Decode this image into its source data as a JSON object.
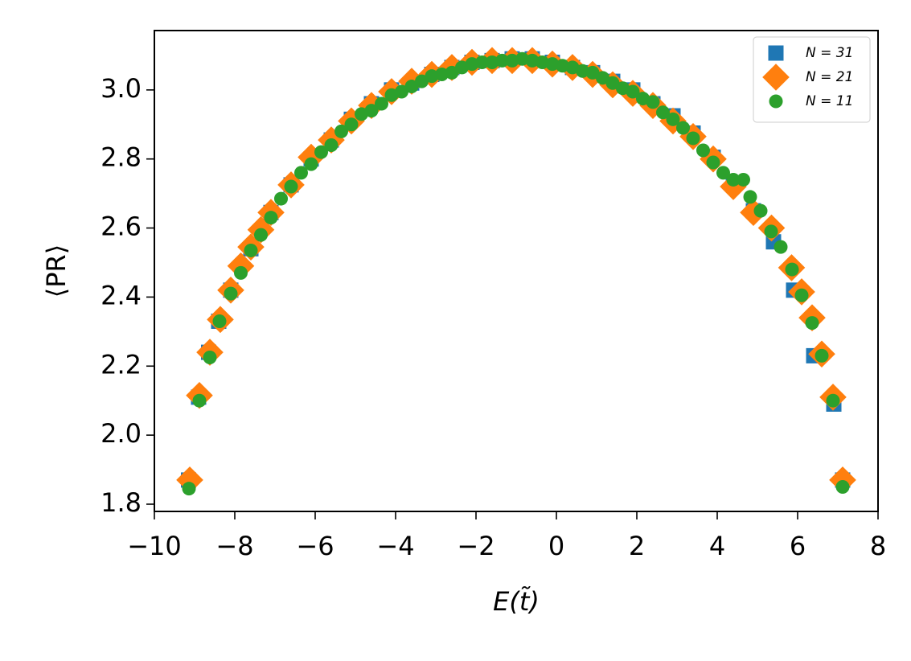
{
  "chart_data": {
    "type": "scatter",
    "x_label": "E(t̃)",
    "y_label": "⟨PR⟩",
    "xlim": [
      -10,
      8
    ],
    "ylim": [
      1.779,
      3.172
    ],
    "xticks": [
      {
        "value": -10,
        "label": "−10"
      },
      {
        "value": -8,
        "label": "−8"
      },
      {
        "value": -6,
        "label": "−6"
      },
      {
        "value": -4,
        "label": "−4"
      },
      {
        "value": -2,
        "label": "−2"
      },
      0,
      2,
      4,
      6,
      8
    ],
    "yticks": [
      1.8,
      {
        "value": 2,
        "label": "2.0"
      },
      2.2,
      2.4,
      2.6,
      2.8,
      {
        "value": 3,
        "label": "3.0"
      }
    ],
    "legend": "upper right",
    "series": [
      {
        "name": "N = 31",
        "color": "#1f77b4",
        "marker": "square",
        "x": [
          -9.15,
          -8.9,
          -8.65,
          -8.4,
          -8.1,
          -7.6,
          -7.1,
          -6.6,
          -6.1,
          -5.6,
          -5.1,
          -4.6,
          -4.1,
          -3.6,
          -3.1,
          -2.6,
          -2.1,
          -1.6,
          -1.1,
          -0.6,
          -0.1,
          0.4,
          0.9,
          1.4,
          1.9,
          2.4,
          2.9,
          3.4,
          3.9,
          4.4,
          4.9,
          5.4,
          5.9,
          6.4,
          6.9,
          7.12
        ],
        "values": [
          1.87,
          2.11,
          2.24,
          2.33,
          2.42,
          2.54,
          2.645,
          2.725,
          2.8,
          2.855,
          2.915,
          2.96,
          3.0,
          3.02,
          3.045,
          3.065,
          3.08,
          3.085,
          3.09,
          3.09,
          3.08,
          3.065,
          3.05,
          3.025,
          3.0,
          2.96,
          2.925,
          2.875,
          2.805,
          2.73,
          2.65,
          2.56,
          2.42,
          2.23,
          2.09,
          1.87
        ]
      },
      {
        "name": "N = 21",
        "color": "#ff7f0e",
        "marker": "diamond",
        "x": [
          -9.12,
          -8.88,
          -8.62,
          -8.36,
          -8.1,
          -7.85,
          -7.6,
          -7.35,
          -7.1,
          -6.6,
          -6.1,
          -5.6,
          -5.1,
          -4.6,
          -4.1,
          -3.6,
          -3.1,
          -2.6,
          -2.1,
          -1.6,
          -1.1,
          -0.6,
          -0.1,
          0.4,
          0.9,
          1.4,
          1.9,
          2.4,
          2.9,
          3.4,
          3.9,
          4.4,
          4.9,
          5.35,
          5.85,
          6.1,
          6.36,
          6.6,
          6.88,
          7.12
        ],
        "values": [
          1.87,
          2.115,
          2.24,
          2.335,
          2.42,
          2.49,
          2.545,
          2.595,
          2.645,
          2.725,
          2.805,
          2.855,
          2.91,
          2.955,
          2.995,
          3.025,
          3.045,
          3.065,
          3.08,
          3.085,
          3.085,
          3.085,
          3.075,
          3.065,
          3.045,
          3.015,
          2.99,
          2.955,
          2.91,
          2.865,
          2.8,
          2.72,
          2.645,
          2.6,
          2.485,
          2.415,
          2.34,
          2.235,
          2.11,
          1.87
        ]
      },
      {
        "name": "N = 11",
        "color": "#2ca02c",
        "marker": "circle",
        "x": [
          -9.14,
          -8.88,
          -8.62,
          -8.38,
          -8.1,
          -7.85,
          -7.6,
          -7.35,
          -7.1,
          -6.85,
          -6.6,
          -6.35,
          -6.1,
          -5.85,
          -5.6,
          -5.35,
          -5.1,
          -4.85,
          -4.6,
          -4.35,
          -4.1,
          -3.85,
          -3.6,
          -3.35,
          -3.1,
          -2.85,
          -2.6,
          -2.35,
          -2.1,
          -1.85,
          -1.6,
          -1.35,
          -1.1,
          -0.85,
          -0.6,
          -0.35,
          -0.1,
          0.15,
          0.4,
          0.65,
          0.9,
          1.15,
          1.4,
          1.65,
          1.9,
          2.15,
          2.4,
          2.65,
          2.9,
          3.15,
          3.4,
          3.65,
          3.9,
          4.15,
          4.4,
          4.65,
          4.82,
          5.08,
          5.34,
          5.58,
          5.86,
          6.1,
          6.36,
          6.6,
          6.88,
          7.12
        ],
        "values": [
          1.845,
          2.1,
          2.225,
          2.33,
          2.41,
          2.47,
          2.535,
          2.58,
          2.63,
          2.685,
          2.72,
          2.76,
          2.785,
          2.82,
          2.84,
          2.88,
          2.9,
          2.93,
          2.94,
          2.96,
          2.985,
          2.995,
          3.01,
          3.025,
          3.04,
          3.045,
          3.05,
          3.065,
          3.075,
          3.08,
          3.08,
          3.085,
          3.085,
          3.09,
          3.085,
          3.08,
          3.075,
          3.07,
          3.065,
          3.055,
          3.05,
          3.035,
          3.02,
          3.005,
          2.995,
          2.975,
          2.965,
          2.935,
          2.915,
          2.89,
          2.86,
          2.825,
          2.79,
          2.76,
          2.74,
          2.74,
          2.69,
          2.65,
          2.59,
          2.545,
          2.48,
          2.405,
          2.325,
          2.23,
          2.1,
          1.85
        ]
      }
    ]
  }
}
